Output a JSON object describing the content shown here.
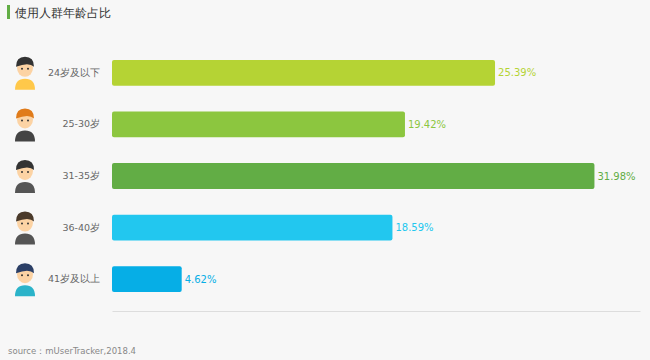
{
  "chart_data": {
    "type": "bar",
    "orientation": "horizontal",
    "title": "使用人群年龄占比",
    "categories": [
      "24岁及以下",
      "25-30岁",
      "31-35岁",
      "36-40岁",
      "41岁及以上"
    ],
    "values": [
      25.39,
      19.42,
      31.98,
      18.59,
      4.62
    ],
    "value_labels": [
      "25.39%",
      "19.42%",
      "31.98%",
      "18.59%",
      "4.62%"
    ],
    "colors": [
      "#b5d334",
      "#8cc63f",
      "#62ad45",
      "#22c7ef",
      "#06aee6"
    ],
    "xlim": [
      0,
      35
    ],
    "grid": false,
    "data_labels": true,
    "tick_labels": "y",
    "source": "source：mUserTracker,2018.4"
  }
}
